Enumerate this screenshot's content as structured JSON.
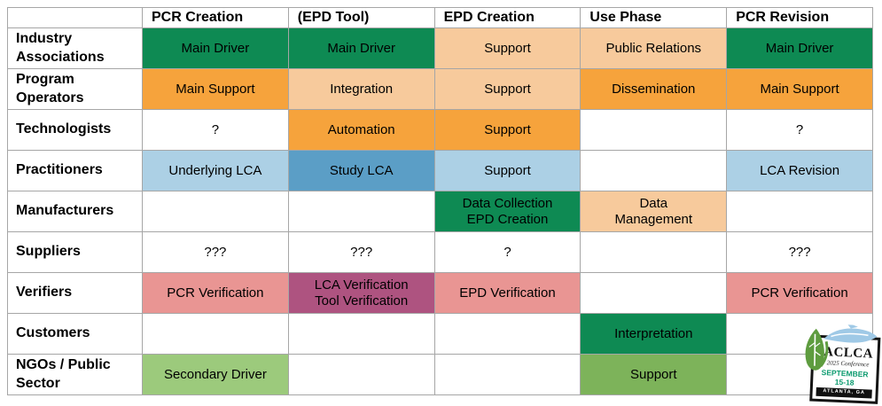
{
  "chart_data": {
    "type": "table",
    "title": "Roles across PCR/EPD lifecycle phases",
    "columns": [
      "",
      "PCR Creation",
      "(EPD Tool)",
      "EPD Creation",
      "Use Phase",
      "PCR Revision"
    ],
    "rows": [
      {
        "label": "Industry Associations",
        "cells": [
          {
            "text": "Main Driver",
            "color": "green"
          },
          {
            "text": "Main Driver",
            "color": "green"
          },
          {
            "text": "Support",
            "color": "peach"
          },
          {
            "text": "Public Relations",
            "color": "peach"
          },
          {
            "text": "Main Driver",
            "color": "green"
          }
        ]
      },
      {
        "label": "Program Operators",
        "cells": [
          {
            "text": "Main Support",
            "color": "orange"
          },
          {
            "text": "Integration",
            "color": "peach"
          },
          {
            "text": "Support",
            "color": "peach"
          },
          {
            "text": "Dissemination",
            "color": "orange"
          },
          {
            "text": "Main Support",
            "color": "orange"
          }
        ]
      },
      {
        "label": "Technologists",
        "cells": [
          {
            "text": "?",
            "color": null
          },
          {
            "text": "Automation",
            "color": "orange"
          },
          {
            "text": "Support",
            "color": "orange"
          },
          {
            "text": "",
            "color": null
          },
          {
            "text": "?",
            "color": null
          }
        ]
      },
      {
        "label": "Practitioners",
        "cells": [
          {
            "text": "Underlying LCA",
            "color": "light_blue"
          },
          {
            "text": "Study LCA",
            "color": "blue"
          },
          {
            "text": "Support",
            "color": "light_blue"
          },
          {
            "text": "",
            "color": null
          },
          {
            "text": "LCA Revision",
            "color": "light_blue"
          }
        ]
      },
      {
        "label": "Manufacturers",
        "cells": [
          {
            "text": "",
            "color": null
          },
          {
            "text": "",
            "color": null
          },
          {
            "text": "Data Collection\nEPD Creation",
            "color": "green"
          },
          {
            "text": "Data\nManagement",
            "color": "peach"
          },
          {
            "text": "",
            "color": null
          }
        ]
      },
      {
        "label": "Suppliers",
        "cells": [
          {
            "text": "???",
            "color": null
          },
          {
            "text": "???",
            "color": null
          },
          {
            "text": "?",
            "color": null
          },
          {
            "text": "",
            "color": null
          },
          {
            "text": "???",
            "color": null
          }
        ]
      },
      {
        "label": "Verifiers",
        "cells": [
          {
            "text": "PCR Verification",
            "color": "salmon"
          },
          {
            "text": "LCA Verification\nTool Verification",
            "color": "plum"
          },
          {
            "text": "EPD Verification",
            "color": "salmon"
          },
          {
            "text": "",
            "color": null
          },
          {
            "text": "PCR Verification",
            "color": "salmon"
          }
        ]
      },
      {
        "label": "Customers",
        "cells": [
          {
            "text": "",
            "color": null
          },
          {
            "text": "",
            "color": null
          },
          {
            "text": "",
            "color": null
          },
          {
            "text": "Interpretation",
            "color": "green"
          },
          {
            "text": "",
            "color": null
          }
        ]
      },
      {
        "label": "NGOs / Public Sector",
        "cells": [
          {
            "text": "Secondary Driver",
            "color": "light_green"
          },
          {
            "text": "",
            "color": null
          },
          {
            "text": "",
            "color": null
          },
          {
            "text": "Support",
            "color": "mid_green"
          },
          {
            "text": "",
            "color": null
          }
        ]
      }
    ],
    "legend_colors": {
      "green": "#0E8A53",
      "orange": "#F6A33C",
      "peach": "#F7CA9C",
      "light_blue": "#ACD0E5",
      "blue": "#5B9EC6",
      "salmon": "#E99593",
      "plum": "#AE5380",
      "mid_green": "#7DB35A",
      "light_green": "#9CCA7C"
    }
  },
  "logo": {
    "org": "ACLCA",
    "conference": "2025 Conference",
    "month": "SEPTEMBER",
    "dates": "15-18",
    "location": "ATLANTA, GA",
    "accent_color": "#0C9B6F",
    "leaf_color": "#5E9C3F",
    "plane_color": "#9FC9E6"
  }
}
